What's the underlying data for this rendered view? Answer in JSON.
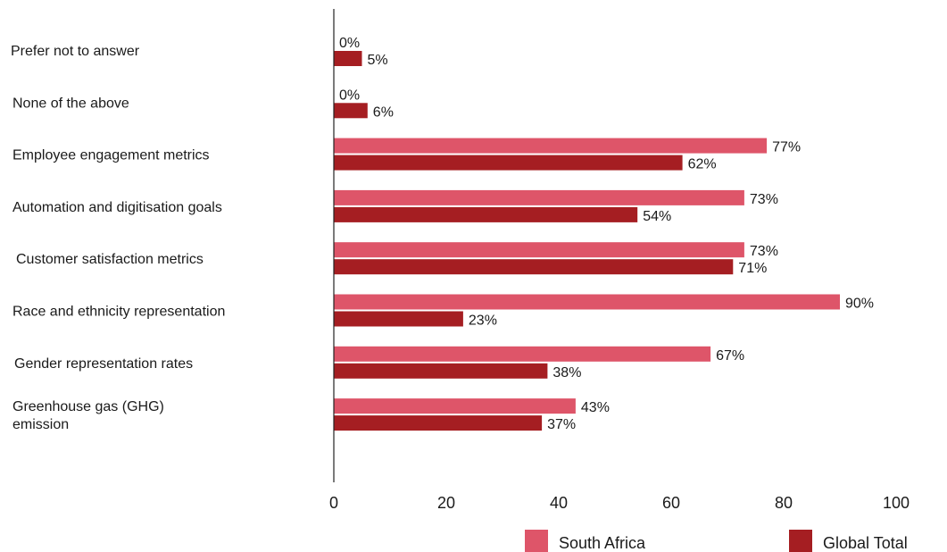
{
  "chart_data": {
    "type": "bar",
    "orientation": "horizontal",
    "categories": [
      [
        "Prefer not to answer"
      ],
      [
        "None of the above"
      ],
      [
        "Employee engagement metrics"
      ],
      [
        "Automation and digitisation goals"
      ],
      [
        "Customer satisfaction metrics"
      ],
      [
        "Race and ethnicity representation"
      ],
      [
        "Gender representation rates"
      ],
      [
        "Greenhouse gas (GHG)",
        "emission"
      ]
    ],
    "series": [
      {
        "name": "South Africa",
        "color": "#de5569",
        "values": [
          0,
          0,
          77,
          73,
          73,
          90,
          67,
          43
        ],
        "labels": [
          "0%",
          "0%",
          "77%",
          "73%",
          "73%",
          "90%",
          "67%",
          "43%"
        ]
      },
      {
        "name": "Global Total",
        "color": "#a51e22",
        "values": [
          5,
          6,
          62,
          54,
          71,
          23,
          38,
          37
        ],
        "labels": [
          "5%",
          "6%",
          "62%",
          "54%",
          "71%",
          "23%",
          "38%",
          "37%"
        ]
      }
    ],
    "xlim": [
      0,
      100
    ],
    "xticks": [
      "0",
      "20",
      "40",
      "60",
      "80",
      "100"
    ],
    "grid": false,
    "legend": "bottom-right"
  }
}
